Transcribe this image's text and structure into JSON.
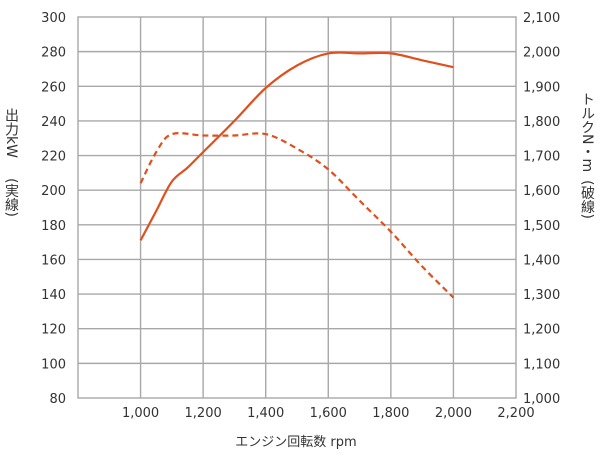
{
  "chart_data": {
    "type": "line",
    "xlabel": "エンジン回転数 rpm",
    "ylabel_left_1": "出力kW",
    "ylabel_left_2": "(実線)",
    "ylabel_right_1": "トルクN・m",
    "ylabel_right_2": "(破線)",
    "xlim": [
      800,
      2200
    ],
    "x_ticks": [
      1000,
      1200,
      1400,
      1600,
      1800,
      2000,
      2200
    ],
    "x_tick_labels": [
      "1,000",
      "1,200",
      "1,400",
      "1,600",
      "1,800",
      "2,000",
      "2,200"
    ],
    "ylim_left": [
      80,
      300
    ],
    "y_left_ticks": [
      80,
      100,
      120,
      140,
      160,
      180,
      200,
      220,
      240,
      260,
      280,
      300
    ],
    "y_left_tick_labels": [
      "80",
      "100",
      "120",
      "140",
      "160",
      "180",
      "200",
      "220",
      "240",
      "260",
      "280",
      "300"
    ],
    "ylim_right": [
      1000,
      2100
    ],
    "y_right_ticks": [
      1000,
      1100,
      1200,
      1300,
      1400,
      1500,
      1600,
      1700,
      1800,
      1900,
      2000,
      2100
    ],
    "y_right_tick_labels": [
      "1,000",
      "1,100",
      "1,200",
      "1,300",
      "1,400",
      "1,500",
      "1,600",
      "1,700",
      "1,800",
      "1,900",
      "2,000",
      "2,100"
    ],
    "grid": true,
    "line_color": "#e0501e",
    "series": [
      {
        "axis": "left",
        "style": "solid",
        "x": [
          1000,
          1050,
          1100,
          1150,
          1200,
          1300,
          1400,
          1500,
          1600,
          1700,
          1800,
          1900,
          2000
        ],
        "y": [
          171,
          188,
          205,
          213,
          222,
          240,
          259,
          272,
          279,
          279,
          279,
          275,
          271
        ]
      },
      {
        "axis": "right",
        "style": "dashed",
        "x": [
          1000,
          1050,
          1100,
          1200,
          1300,
          1400,
          1500,
          1600,
          1700,
          1800,
          1900,
          2000
        ],
        "y": [
          1620,
          1710,
          1762,
          1758,
          1758,
          1762,
          1720,
          1660,
          1570,
          1480,
          1380,
          1290
        ]
      }
    ]
  }
}
